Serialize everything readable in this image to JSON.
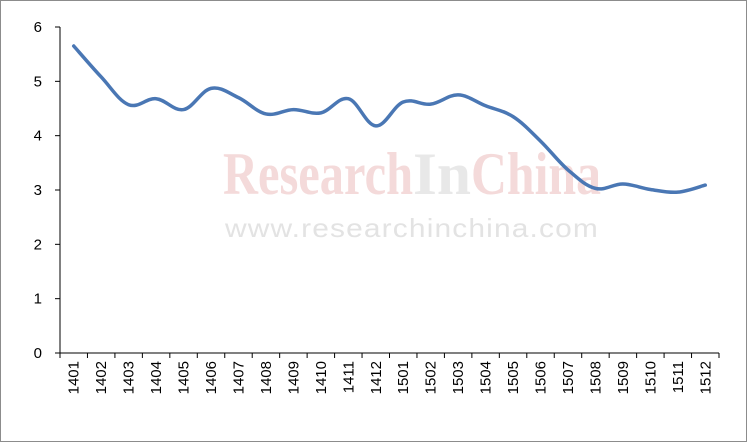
{
  "watermark": {
    "brand_part1": "Research",
    "brand_part2": "In",
    "brand_part3": "China",
    "url": "www.researchinchina.com"
  },
  "colors": {
    "line": "#4a77b4",
    "axis": "#000000",
    "watermark_red": "#f4dada",
    "watermark_gray": "#e8e8e8"
  },
  "chart_data": {
    "type": "line",
    "title": "",
    "xlabel": "",
    "ylabel": "",
    "ylim": [
      0,
      6
    ],
    "yticks": [
      0,
      1,
      2,
      3,
      4,
      5,
      6
    ],
    "grid": false,
    "categories": [
      "1401",
      "1402",
      "1403",
      "1404",
      "1405",
      "1406",
      "1407",
      "1408",
      "1409",
      "1410",
      "1411",
      "1412",
      "1501",
      "1502",
      "1503",
      "1504",
      "1505",
      "1506",
      "1507",
      "1508",
      "1509",
      "1510",
      "1511",
      "1512"
    ],
    "series": [
      {
        "values": [
          5.65,
          5.08,
          4.57,
          4.68,
          4.48,
          4.87,
          4.7,
          4.4,
          4.48,
          4.42,
          4.68,
          4.18,
          4.62,
          4.58,
          4.75,
          4.55,
          4.35,
          3.9,
          3.37,
          3.03,
          3.11,
          3.01,
          2.96,
          3.09
        ]
      }
    ]
  }
}
